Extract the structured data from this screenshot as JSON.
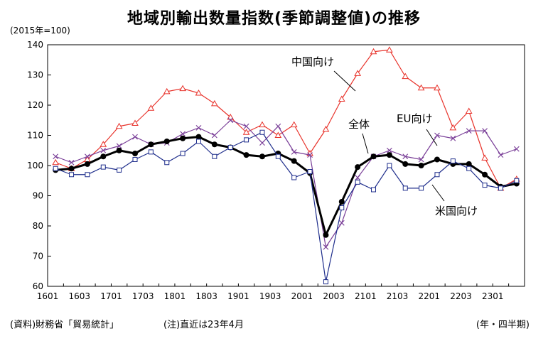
{
  "header": {
    "title": "地域別輸出数量指数(季節調整値)の推移",
    "unit": "(2015年=100)"
  },
  "footer": {
    "source": "(資料)財務省「貿易統計」",
    "note": "(注)直近は23年4月",
    "period": "(年・四半期)"
  },
  "chart_data": {
    "type": "line",
    "title": "地域別輸出数量指数(季節調整値)の推移",
    "ylabel": "(2015年=100)",
    "xlabel": "(年・四半期)",
    "ylim": [
      60,
      140
    ],
    "yticks": [
      60,
      70,
      80,
      90,
      100,
      110,
      120,
      130,
      140
    ],
    "grid": false,
    "x": [
      "1601",
      "1602",
      "1603",
      "1604",
      "1701",
      "1702",
      "1703",
      "1704",
      "1801",
      "1802",
      "1803",
      "1804",
      "1901",
      "1902",
      "1903",
      "1904",
      "2001",
      "2002",
      "2003",
      "2004",
      "2101",
      "2102",
      "2103",
      "2104",
      "2201",
      "2202",
      "2203",
      "2204",
      "2301",
      "2302"
    ],
    "xtick_labels": [
      "1601",
      "1603",
      "1701",
      "1703",
      "1801",
      "1803",
      "1901",
      "1903",
      "2001",
      "2003",
      "2101",
      "2103",
      "2201",
      "2203",
      "2301"
    ],
    "series": [
      {
        "name": "中国向け",
        "color": "#e8322a",
        "marker": "triangle",
        "values": [
          101,
          99,
          102,
          107,
          113,
          114,
          119,
          124.5,
          125.5,
          124,
          120.5,
          116,
          111,
          113.5,
          110,
          113.5,
          104,
          112,
          122,
          130.5,
          137.7,
          138.3,
          129.5,
          125.7,
          125.7,
          112.5,
          118,
          102.5,
          92.5,
          95.5
        ]
      },
      {
        "name": "EU向け",
        "color": "#7a3f98",
        "marker": "x",
        "values": [
          103,
          101,
          103,
          105,
          106.5,
          109.5,
          107,
          107.5,
          110.5,
          112.5,
          110,
          115,
          113,
          107.5,
          113,
          104.5,
          103.5,
          73,
          81,
          96,
          103,
          105,
          103,
          102,
          110,
          109,
          111.5,
          111.5,
          103.5,
          105.5
        ]
      },
      {
        "name": "全体",
        "color": "#000000",
        "marker": "circle",
        "values": [
          98.5,
          99,
          100.5,
          103,
          105,
          104,
          107,
          108,
          109,
          109.5,
          107,
          106,
          103.5,
          103,
          104,
          101.5,
          97.5,
          77,
          88,
          99.5,
          103,
          103.5,
          100.5,
          100,
          102,
          100.5,
          100.5,
          97,
          93,
          94
        ]
      },
      {
        "name": "米国向け",
        "color": "#1f2e8c",
        "marker": "square",
        "values": [
          99,
          97,
          97,
          99.5,
          98.5,
          102,
          104.5,
          101,
          104,
          108,
          103,
          106,
          108.5,
          111,
          103,
          96,
          98,
          61.5,
          86,
          94.5,
          92,
          100,
          92.5,
          92.5,
          97,
          101.5,
          99,
          93.5,
          92.5,
          95
        ]
      }
    ]
  }
}
